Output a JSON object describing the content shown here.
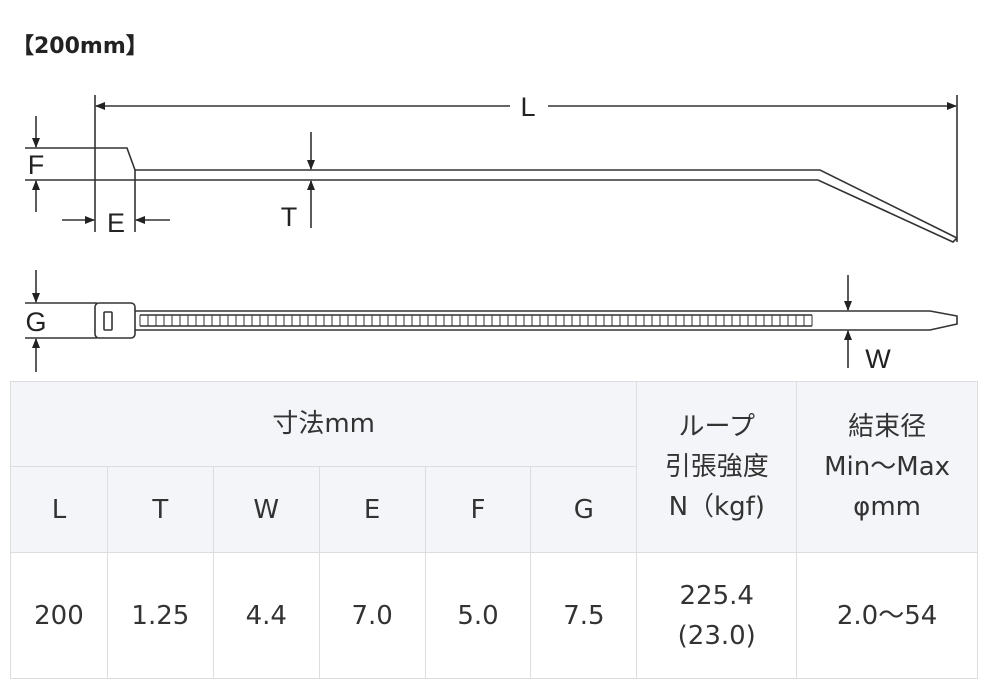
{
  "title": "【200mm】",
  "diagram": {
    "labels": {
      "L": "L",
      "F": "F",
      "E": "E",
      "T": "T",
      "G": "G",
      "W": "W"
    }
  },
  "table": {
    "group_header": "寸法mm",
    "loop_header": [
      "ループ",
      "引張強度",
      "N（kgf)"
    ],
    "bundle_header": [
      "結束径",
      "Min～Max",
      "φmm"
    ],
    "columns": [
      "L",
      "T",
      "W",
      "E",
      "F",
      "G"
    ],
    "row": {
      "L": "200",
      "T": "1.25",
      "W": "4.4",
      "E": "7.0",
      "F": "5.0",
      "G": "7.5",
      "strength": [
        "225.4",
        "(23.0)"
      ],
      "bundle": "2.0～54"
    }
  }
}
